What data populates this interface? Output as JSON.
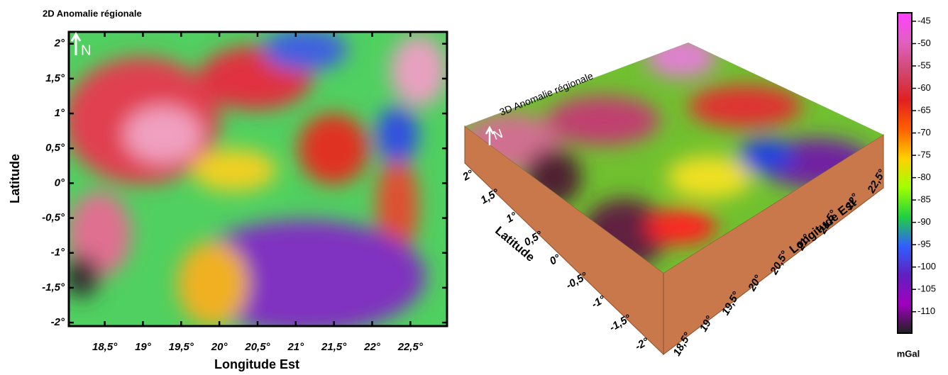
{
  "map2d": {
    "title": "2D Anomalie régionale",
    "north": "N",
    "xlabel": "Longitude Est",
    "ylabel": "Latitude",
    "xlim": [
      18.03,
      22.98
    ],
    "ylim": [
      -2.05,
      2.17
    ],
    "xticks": [
      {
        "value": 18.5,
        "label": "18,5°"
      },
      {
        "value": 19,
        "label": "19°"
      },
      {
        "value": 19.5,
        "label": "19,5°"
      },
      {
        "value": 20,
        "label": "20°"
      },
      {
        "value": 20.5,
        "label": "20,5°"
      },
      {
        "value": 21,
        "label": "21°"
      },
      {
        "value": 21.5,
        "label": "21,5°"
      },
      {
        "value": 22,
        "label": "22°"
      },
      {
        "value": 22.5,
        "label": "22,5°"
      }
    ],
    "yticks": [
      {
        "value": 2,
        "label": "2°"
      },
      {
        "value": 1.5,
        "label": "1,5°"
      },
      {
        "value": 1,
        "label": "1°"
      },
      {
        "value": 0.5,
        "label": "0,5°"
      },
      {
        "value": 0,
        "label": "0°"
      },
      {
        "value": -0.5,
        "label": "-0,5°"
      },
      {
        "value": -1,
        "label": "-1°"
      },
      {
        "value": -1.5,
        "label": "-1,5°"
      },
      {
        "value": -2,
        "label": "-2°"
      }
    ]
  },
  "map3d": {
    "title": "3D Anomalie régionale",
    "north": "N",
    "xlabel": "Longitude Est",
    "ylabel": "Latitude",
    "xticks": [
      {
        "value": 18.5,
        "label": "18,5°"
      },
      {
        "value": 19,
        "label": "19°"
      },
      {
        "value": 19.5,
        "label": "19,5°"
      },
      {
        "value": 20,
        "label": "20°"
      },
      {
        "value": 20.5,
        "label": "20,5°"
      },
      {
        "value": 21,
        "label": "21°"
      },
      {
        "value": 21.5,
        "label": "21,5°"
      },
      {
        "value": 22,
        "label": "22°"
      },
      {
        "value": 22.5,
        "label": "22,5°"
      }
    ],
    "yticks": [
      {
        "value": 2,
        "label": "2°"
      },
      {
        "value": 1.5,
        "label": "1,5°"
      },
      {
        "value": 1,
        "label": "1°"
      },
      {
        "value": 0.5,
        "label": "0,5°"
      },
      {
        "value": 0,
        "label": "0°"
      },
      {
        "value": -0.5,
        "label": "-0,5°"
      },
      {
        "value": -1,
        "label": "-1°"
      },
      {
        "value": -1.5,
        "label": "-1,5°"
      },
      {
        "value": -2,
        "label": "-2°"
      }
    ]
  },
  "colorbar": {
    "unit": "mGal",
    "lim": [
      -114.8,
      -43.1
    ],
    "ticks": [
      -45,
      -50,
      -55,
      -60,
      -65,
      -70,
      -75,
      -80,
      -85,
      -90,
      -95,
      -100,
      -105,
      -110
    ],
    "colors": [
      "#ff40ff",
      "#e060c0",
      "#d04870",
      "#e02020",
      "#ff6000",
      "#ffd000",
      "#a0ff00",
      "#20d040",
      "#3060ff",
      "#6020c0",
      "#a000c0",
      "#202020"
    ]
  }
}
